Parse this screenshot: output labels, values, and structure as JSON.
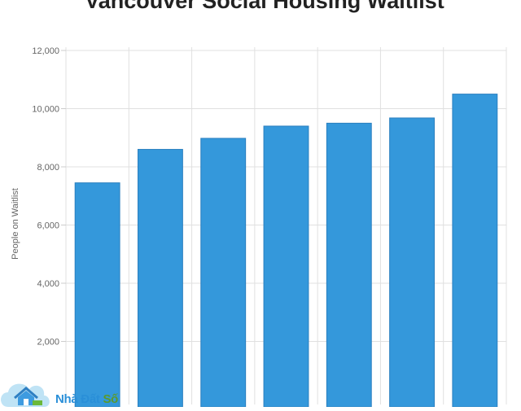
{
  "chart_data": {
    "type": "bar",
    "title": "Vancouver Social Housing Waitlist",
    "xlabel": "",
    "ylabel": "People on Waitlist",
    "categories": [
      "",
      "",
      "",
      "",
      "",
      "",
      ""
    ],
    "values": [
      7450,
      8600,
      8980,
      9400,
      9500,
      9680,
      10500
    ],
    "ylim": [
      0,
      12000
    ],
    "yticks": [
      "2,000",
      "4,000",
      "6,000",
      "8,000",
      "10,000",
      "12,000"
    ],
    "ytick_values": [
      2000,
      4000,
      6000,
      8000,
      10000,
      12000
    ],
    "grid": true,
    "bar_color": "#3498db",
    "grid_color": "#e0e0e0"
  },
  "watermark": {
    "part1": "Nhà Đất ",
    "part2": "Số"
  }
}
